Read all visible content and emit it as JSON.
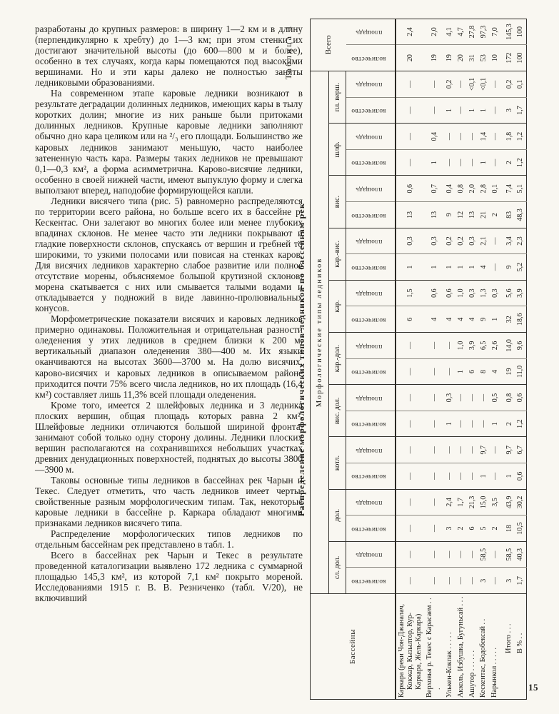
{
  "page": {
    "number": "15",
    "colors": {
      "paper": "#f9f7f1",
      "ink": "#201f1b",
      "rule": "#33312c"
    }
  },
  "article": {
    "paragraphs": [
      "разработаны до крупных размеров: в ширину 1—2 км и в длину (перпендикулярно к хребту) до 1—3 км; при этом стенки их достигают значительной высоты (до 600—800 м и более), особенно в тех случаях, когда кары помещаются под высокими вершинами. Но и эти кары далеко не полностью заняты ледниковыми образованиями.",
      "На современном этапе каровые ледники возникают в результате деградации долинных ледников, имеющих кары в тылу коротких долин; многие из них раньше были притоками долинных ледников. Крупные каровые ледники заполняют обычно дно кара целиком или на ²/₃ его площади. Большинство же каровых ледников занимают меньшую, часто наиболее затененную часть кара. Размеры таких ледников не превышают 0,1—0,3 км², а форма асимметрична. Карово-висячие ледники, особенно в своей нижней части, имеют выпуклую форму и слегка выползают вперед, наподобие формирующейся капли.",
      "Ледники висячего типа (рис. 5) равномерно распределяются по территории всего района, но больше всего их в бассейне р. Кескентас. Они залегают во многих более или менее глубоких впадинах склонов. Не менее часто эти ледники покрывают и гладкие поверхности склонов, спускаясь от вершин и гребней то широкими, то узкими полосами или повисая на стенках каров. Для висячих ледников характерно слабое развитие или полное отсутствие морены, объясняемое большой крутизной склонов: морена скатывается с них или смывается талыми водами и откладывается у подножий в виде лавинно-пролювиальных конусов.",
      "Морфометрические показатели висячих и каровых ледников примерно одинаковы. Положительная и отрицательная разности оледенения у этих ледников в среднем близки к 200 м, вертикальный диапазон оледенения 380—400 м. Их языки оканчиваются на высотах 3600—3700 м. На долю висячих, карово-висячих и каровых ледников в описываемом районе приходится почти 75% всего числа ледников, но их площадь (16,4 км²) составляет лишь 11,3% всей площади оледенения.",
      "Кроме того, имеется 2 шлейфовых ледника и 3 ледника плоских вершин, общая площадь которых равна 2 км². Шлейфовые ледники отличаются большой шириной фронта, занимают собой только одну сторону долины. Ледники плоских вершин располагаются на сохранившихся небольших участках древних денудационных поверхностей, поднятых до высоты 3800—3900 м.",
      "Таковы основные типы ледников в бассейнах рек Чарын и Текес. Следует отметить, что часть ледников имеет черты, свойственные разным морфологическим типам. Так, некоторые каровые ледники в бассейне р. Каркара обладают многими признаками ледников висячего типа.",
      "Распределение морфологических типов ледников по отдельным бассейнам рек представлено в табл. 1.",
      "Всего в бассейнах рек Чарын и Текес в результате проведенной каталогизации выявлено 172 ледника с суммарной площадью 145,3 км², из которой 7,1 км² покрыто мореной. Исследованиями 1915 г. В. В. Резниченко (табл. V/20), не включивший"
    ]
  },
  "table": {
    "label": "Таблица 1",
    "title": "Распределение морфологических типов ледников по бассейнам рек",
    "header": {
      "basins": "Бассейны",
      "types": "Морфологические типы ледников",
      "total": "Всего",
      "quantity": "количество",
      "area": "площадь"
    },
    "groups": [
      "сл. дол.",
      "дол.",
      "котл.",
      "вис. дол.",
      "кар.-дол.",
      "кар.",
      "кар.-вис.",
      "вис.",
      "шлф.",
      "пл. верш."
    ],
    "rows": [
      {
        "name": "Каркара (реки Чон-Джаналач, Кокжар, Кызылтор, Кур-Каркара, Жель-Каркара)",
        "values": [
          "—",
          "—",
          "—",
          "—",
          "—",
          "—",
          "—",
          "—",
          "—",
          "—",
          "6",
          "1,5",
          "1",
          "0,3",
          "13",
          "0,6",
          "—",
          "—",
          "—",
          "—",
          "20",
          "2,4"
        ]
      },
      {
        "name": "Верховья р. Текес с Карасаем . . .",
        "values": [
          "—",
          "—",
          "—",
          "—",
          "—",
          "—",
          "—",
          "—",
          "—",
          "—",
          "4",
          "0,6",
          "1",
          "0,3",
          "13",
          "0,7",
          "1",
          "0,4",
          "—",
          "—",
          "19",
          "2,0"
        ]
      },
      {
        "name": "Улькен-Кокпак . . . . .",
        "values": [
          "—",
          "—",
          "3",
          "2,4",
          "—",
          "—",
          "1",
          "0,3",
          "—",
          "—",
          "4",
          "0,6",
          "1",
          "0,2",
          "9",
          "0,4",
          "—",
          "—",
          "1",
          "0,2",
          "19",
          "4,1"
        ]
      },
      {
        "name": "Акколь, Избушка, Бугуньсай . . .",
        "values": [
          "—",
          "—",
          "2",
          "1,7",
          "—",
          "—",
          "—",
          "—",
          "1",
          "1,0",
          "4",
          "1,0",
          "1",
          "0,2",
          "12",
          "0,8",
          "—",
          "—",
          "—",
          "—",
          "20",
          "4,7"
        ]
      },
      {
        "name": "Ашутор . . . . . .",
        "values": [
          "—",
          "—",
          "6",
          "21,3",
          "—",
          "—",
          "—",
          "—",
          "6",
          "3,9",
          "4",
          "0,3",
          "1",
          "0,3",
          "13",
          "2,0",
          "—",
          "—",
          "1",
          "<0,1",
          "31",
          "27,8"
        ]
      },
      {
        "name": "Кескентас, Бодобексай . .",
        "values": [
          "3",
          "58,5",
          "5",
          "15,0",
          "1",
          "9,7",
          "—",
          "—",
          "8",
          "6,5",
          "9",
          "1,3",
          "4",
          "2,1",
          "21",
          "2,8",
          "1",
          "1,4",
          "1",
          "<0,1",
          "53",
          "97,3"
        ]
      },
      {
        "name": "Нарынкол . . . . .",
        "values": [
          "—",
          "—",
          "2",
          "3,5",
          "—",
          "—",
          "1",
          "0,5",
          "4",
          "2,6",
          "1",
          "0,3",
          "—",
          "—",
          "2",
          "0,1",
          "—",
          "—",
          "—",
          "—",
          "10",
          "7,0"
        ]
      },
      {
        "name": "Итого . . .",
        "values": [
          "3",
          "58,5",
          "18",
          "43,9",
          "1",
          "9,7",
          "2",
          "0,8",
          "19",
          "14,0",
          "32",
          "5,6",
          "9",
          "3,4",
          "83",
          "7,4",
          "2",
          "1,8",
          "3",
          "0,2",
          "172",
          "145,3"
        ]
      },
      {
        "name": "В % . .",
        "values": [
          "1,7",
          "40,3",
          "10,5",
          "30,2",
          "0,6",
          "6,7",
          "1,2",
          "0,6",
          "11,0",
          "9,6",
          "18,6",
          "3,9",
          "5,2",
          "2,3",
          "48,3",
          "5,1",
          "1,2",
          "1,2",
          "1,7",
          "0,1",
          "100",
          "100"
        ]
      }
    ]
  }
}
